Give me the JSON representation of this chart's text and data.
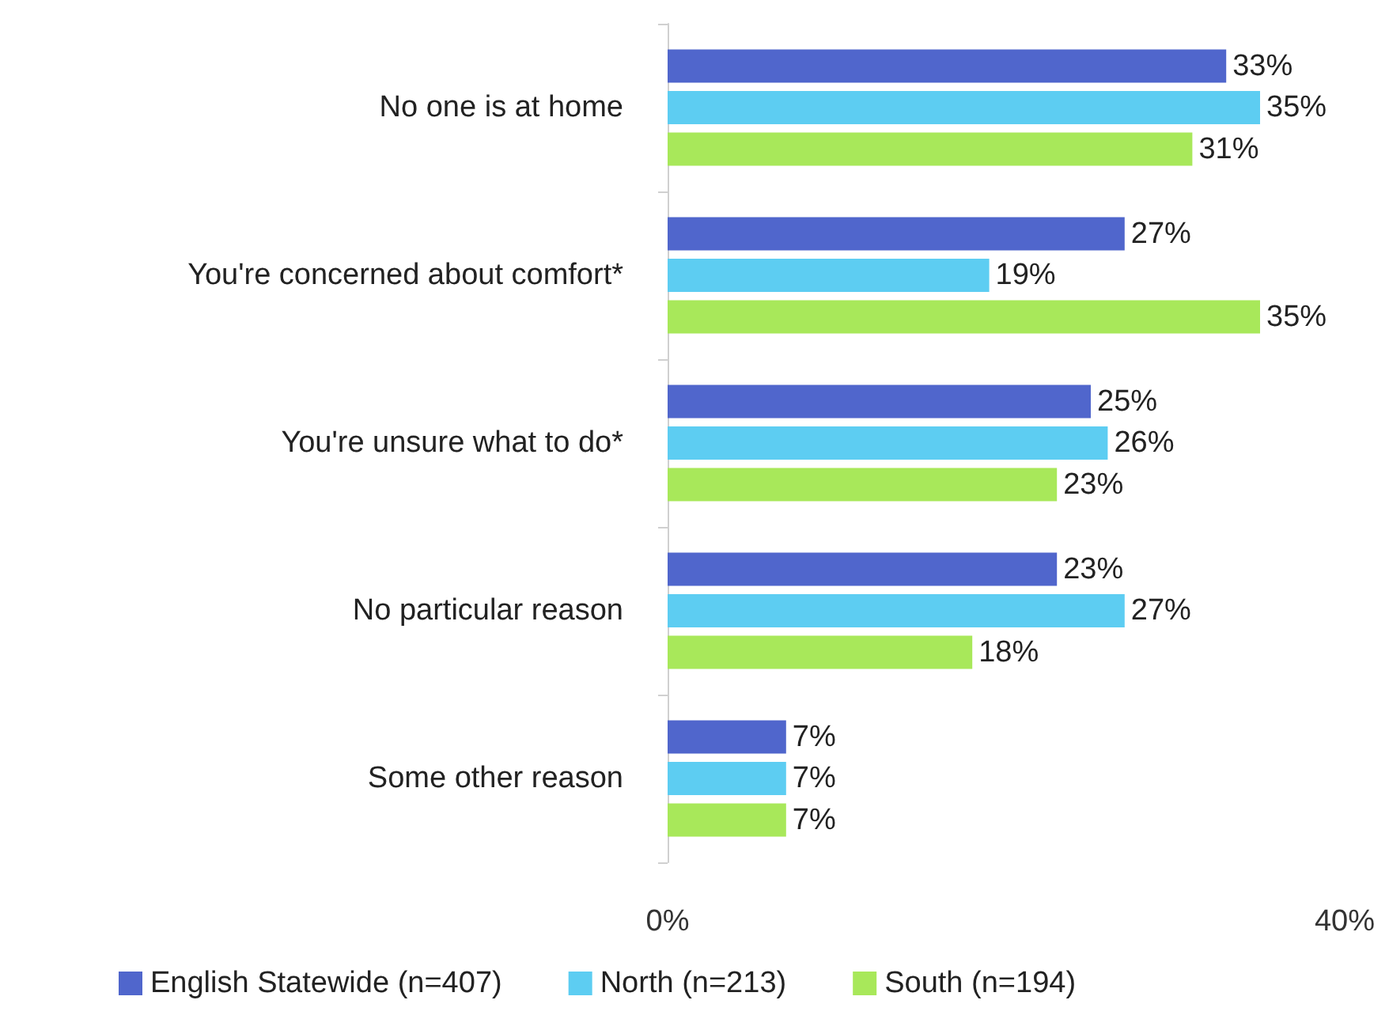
{
  "chart_data": {
    "type": "bar",
    "orientation": "horizontal",
    "categories": [
      "No one is at home",
      "You're concerned about comfort*",
      "You're unsure what to do*",
      "No particular reason",
      "Some other reason"
    ],
    "series": [
      {
        "name": "English Statewide (n=407)",
        "color": "#5066cc",
        "values": [
          33,
          27,
          25,
          23,
          7
        ],
        "value_labels": [
          "33%",
          "27%",
          "25%",
          "23%",
          "7%"
        ]
      },
      {
        "name": "North (n=213)",
        "color": "#5dcdf2",
        "values": [
          35,
          19,
          26,
          27,
          7
        ],
        "value_labels": [
          "35%",
          "19%",
          "26%",
          "27%",
          "7%"
        ]
      },
      {
        "name": "South (n=194)",
        "color": "#a8e85a",
        "values": [
          31,
          35,
          23,
          18,
          7
        ],
        "value_labels": [
          "31%",
          "35%",
          "23%",
          "18%",
          "7%"
        ]
      }
    ],
    "xlim": [
      0,
      40
    ],
    "xticks": [
      {
        "value": 0,
        "label": "0%"
      },
      {
        "value": 40,
        "label": "40%"
      }
    ],
    "grid": false,
    "legend": "bottom"
  }
}
